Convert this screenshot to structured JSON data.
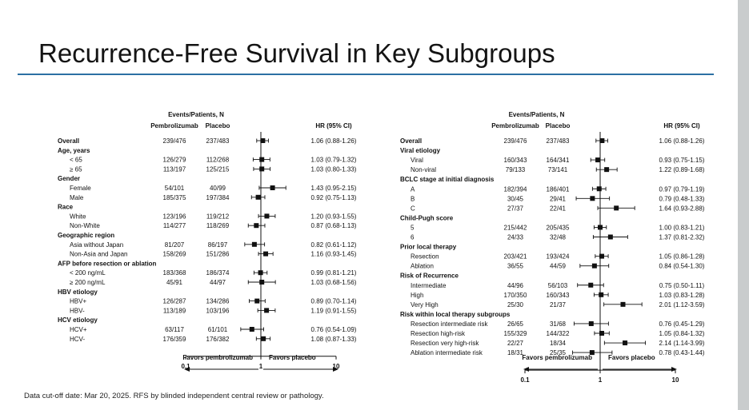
{
  "slide": {
    "title": "Recurrence-Free Survival in Key Subgroups",
    "footnote": "Data cut-off date: Mar 20, 2025. RFS by blinded independent central review or pathology."
  },
  "chart_data": [
    {
      "type": "forest",
      "scale": "log",
      "xlim": [
        0.1,
        10
      ],
      "reference_line": 1,
      "ticks": [
        "0.1",
        "1",
        "10"
      ],
      "header_group": "Events/Patients, N",
      "col_arm1": "Pembrolizumab",
      "col_arm2": "Placebo",
      "col_hr": "HR (95%  CI)",
      "favors_left": "Favors pembrolizumab",
      "favors_right": "Favors placebo",
      "rows": [
        {
          "kind": "data",
          "label": "Overall",
          "bold": true,
          "indent": false,
          "arm1": "239/476",
          "arm2": "237/483",
          "hr_text": "1.06 (0.88-1.26)",
          "hr": 1.06,
          "lo": 0.88,
          "hi": 1.26
        },
        {
          "kind": "header",
          "label": "Age, years"
        },
        {
          "kind": "data",
          "label": "< 65",
          "indent": true,
          "arm1": "126/279",
          "arm2": "112/268",
          "hr_text": "1.03 (0.79-1.32)",
          "hr": 1.03,
          "lo": 0.79,
          "hi": 1.32
        },
        {
          "kind": "data",
          "label": "≥ 65",
          "indent": true,
          "arm1": "113/197",
          "arm2": "125/215",
          "hr_text": "1.03 (0.80-1.33)",
          "hr": 1.03,
          "lo": 0.8,
          "hi": 1.33
        },
        {
          "kind": "header",
          "label": "Gender"
        },
        {
          "kind": "data",
          "label": "Female",
          "indent": true,
          "arm1": "54/101",
          "arm2": "40/99",
          "hr_text": "1.43 (0.95-2.15)",
          "hr": 1.43,
          "lo": 0.95,
          "hi": 2.15
        },
        {
          "kind": "data",
          "label": "Male",
          "indent": true,
          "arm1": "185/375",
          "arm2": "197/384",
          "hr_text": "0.92 (0.75-1.13)",
          "hr": 0.92,
          "lo": 0.75,
          "hi": 1.13
        },
        {
          "kind": "header",
          "label": "Race"
        },
        {
          "kind": "data",
          "label": "White",
          "indent": true,
          "arm1": "123/196",
          "arm2": "119/212",
          "hr_text": "1.20 (0.93-1.55)",
          "hr": 1.2,
          "lo": 0.93,
          "hi": 1.55
        },
        {
          "kind": "data",
          "label": "Non-White",
          "indent": true,
          "arm1": "114/277",
          "arm2": "118/269",
          "hr_text": "0.87 (0.68-1.13)",
          "hr": 0.87,
          "lo": 0.68,
          "hi": 1.13
        },
        {
          "kind": "header",
          "label": "Geographic region"
        },
        {
          "kind": "data",
          "label": "Asia without Japan",
          "indent": true,
          "arm1": "81/207",
          "arm2": "86/197",
          "hr_text": "0.82 (0.61-1.12)",
          "hr": 0.82,
          "lo": 0.61,
          "hi": 1.12
        },
        {
          "kind": "data",
          "label": "Non-Asia and Japan",
          "indent": true,
          "arm1": "158/269",
          "arm2": "151/286",
          "hr_text": "1.16 (0.93-1.45)",
          "hr": 1.16,
          "lo": 0.93,
          "hi": 1.45
        },
        {
          "kind": "header",
          "label": "AFP before resection or ablation"
        },
        {
          "kind": "data",
          "label": "< 200 ng/mL",
          "indent": true,
          "arm1": "183/368",
          "arm2": "186/374",
          "hr_text": "0.99 (0.81-1.21)",
          "hr": 0.99,
          "lo": 0.81,
          "hi": 1.21
        },
        {
          "kind": "data",
          "label": "≥ 200 ng/mL",
          "indent": true,
          "arm1": "45/91",
          "arm2": "44/97",
          "hr_text": "1.03 (0.68-1.56)",
          "hr": 1.03,
          "lo": 0.68,
          "hi": 1.56
        },
        {
          "kind": "header",
          "label": "HBV  etiology"
        },
        {
          "kind": "data",
          "label": "HBV+",
          "indent": true,
          "arm1": "126/287",
          "arm2": "134/286",
          "hr_text": "0.89 (0.70-1.14)",
          "hr": 0.89,
          "lo": 0.7,
          "hi": 1.14
        },
        {
          "kind": "data",
          "label": "HBV-",
          "indent": true,
          "arm1": "113/189",
          "arm2": "103/196",
          "hr_text": "1.19 (0.91-1.55)",
          "hr": 1.19,
          "lo": 0.91,
          "hi": 1.55
        },
        {
          "kind": "header",
          "label": "HCV  etiology"
        },
        {
          "kind": "data",
          "label": "HCV+",
          "indent": true,
          "arm1": "63/117",
          "arm2": "61/101",
          "hr_text": "0.76 (0.54-1.09)",
          "hr": 0.76,
          "lo": 0.54,
          "hi": 1.09
        },
        {
          "kind": "data",
          "label": "HCV-",
          "indent": true,
          "arm1": "176/359",
          "arm2": "176/382",
          "hr_text": "1.08 (0.87-1.33)",
          "hr": 1.08,
          "lo": 0.87,
          "hi": 1.33
        }
      ]
    },
    {
      "type": "forest",
      "scale": "log",
      "xlim": [
        0.1,
        10
      ],
      "reference_line": 1,
      "ticks": [
        "0.1",
        "1",
        "10"
      ],
      "header_group": "Events/Patients, N",
      "col_arm1": "Pembrolizumab",
      "col_arm2": "Placebo",
      "col_hr": "HR (95%  CI)",
      "favors_left": "Favors pembrolizumab",
      "favors_right": "Favors placebo",
      "rows": [
        {
          "kind": "data",
          "label": "Overall",
          "bold": true,
          "indent": false,
          "arm1": "239/476",
          "arm2": "237/483",
          "hr_text": "1.06 (0.88-1.26)",
          "hr": 1.06,
          "lo": 0.88,
          "hi": 1.26
        },
        {
          "kind": "header",
          "label": "Viral etiology"
        },
        {
          "kind": "data",
          "label": "Viral",
          "indent": true,
          "arm1": "160/343",
          "arm2": "164/341",
          "hr_text": "0.93 (0.75-1.15)",
          "hr": 0.93,
          "lo": 0.75,
          "hi": 1.15
        },
        {
          "kind": "data",
          "label": "Non-viral",
          "indent": true,
          "arm1": "79/133",
          "arm2": "73/141",
          "hr_text": "1.22 (0.89-1.68)",
          "hr": 1.22,
          "lo": 0.89,
          "hi": 1.68
        },
        {
          "kind": "header",
          "label": "BCLC stage at initial diagnosis"
        },
        {
          "kind": "data",
          "label": "A",
          "indent": true,
          "arm1": "182/394",
          "arm2": "186/401",
          "hr_text": "0.97 (0.79-1.19)",
          "hr": 0.97,
          "lo": 0.79,
          "hi": 1.19
        },
        {
          "kind": "data",
          "label": "B",
          "indent": true,
          "arm1": "30/45",
          "arm2": "29/41",
          "hr_text": "0.79 (0.48-1.33)",
          "hr": 0.79,
          "lo": 0.48,
          "hi": 1.33
        },
        {
          "kind": "data",
          "label": "C",
          "indent": true,
          "arm1": "27/37",
          "arm2": "22/41",
          "hr_text": "1.64 (0.93-2.88)",
          "hr": 1.64,
          "lo": 0.93,
          "hi": 2.88
        },
        {
          "kind": "header",
          "label": "Child-Pugh score"
        },
        {
          "kind": "data",
          "label": "5",
          "indent": true,
          "arm1": "215/442",
          "arm2": "205/435",
          "hr_text": "1.00  (0.83-1.21)",
          "hr": 1.0,
          "lo": 0.83,
          "hi": 1.21
        },
        {
          "kind": "data",
          "label": "6",
          "indent": true,
          "arm1": "24/33",
          "arm2": "32/48",
          "hr_text": "1.37 (0.81-2.32)",
          "hr": 1.37,
          "lo": 0.81,
          "hi": 2.32
        },
        {
          "kind": "header",
          "label": "Prior local therapy"
        },
        {
          "kind": "data",
          "label": "Resection",
          "indent": true,
          "arm1": "203/421",
          "arm2": "193/424",
          "hr_text": "1.05 (0.86-1.28)",
          "hr": 1.05,
          "lo": 0.86,
          "hi": 1.28
        },
        {
          "kind": "data",
          "label": "Ablation",
          "indent": true,
          "arm1": "36/55",
          "arm2": "44/59",
          "hr_text": "0.84 (0.54-1.30)",
          "hr": 0.84,
          "lo": 0.54,
          "hi": 1.3
        },
        {
          "kind": "header",
          "label": "Risk of Recurrence"
        },
        {
          "kind": "data",
          "label": "Intermediate",
          "indent": true,
          "arm1": "44/96",
          "arm2": "56/103",
          "hr_text": "0.75 (0.50-1.11)",
          "hr": 0.75,
          "lo": 0.5,
          "hi": 1.11
        },
        {
          "kind": "data",
          "label": "High",
          "indent": true,
          "arm1": "170/350",
          "arm2": "160/343",
          "hr_text": "1.03 (0.83-1.28)",
          "hr": 1.03,
          "lo": 0.83,
          "hi": 1.28
        },
        {
          "kind": "data",
          "label": "Very  High",
          "indent": true,
          "arm1": "25/30",
          "arm2": "21/37",
          "hr_text": "2.01 (1.12-3.59)",
          "hr": 2.01,
          "lo": 1.12,
          "hi": 3.59
        },
        {
          "kind": "header",
          "label": "Risk within local therapy subgroups"
        },
        {
          "kind": "data",
          "label": "Resection intermediate risk",
          "indent": true,
          "arm1": "26/65",
          "arm2": "31/68",
          "hr_text": "0.76 (0.45-1.29)",
          "hr": 0.76,
          "lo": 0.45,
          "hi": 1.29
        },
        {
          "kind": "data",
          "label": "Resection high-risk",
          "indent": true,
          "arm1": "155/329",
          "arm2": "144/322",
          "hr_text": "1.05 (0.84-1.32)",
          "hr": 1.05,
          "lo": 0.84,
          "hi": 1.32
        },
        {
          "kind": "data",
          "label": "Resection very high-risk",
          "indent": true,
          "arm1": "22/27",
          "arm2": "18/34",
          "hr_text": "2.14 (1.14-3.99)",
          "hr": 2.14,
          "lo": 1.14,
          "hi": 3.99
        },
        {
          "kind": "data",
          "label": "Ablation intermediate risk",
          "indent": true,
          "arm1": "18/31",
          "arm2": "25/35",
          "hr_text": "0.78 (0.43-1.44)",
          "hr": 0.78,
          "lo": 0.43,
          "hi": 1.44
        }
      ]
    }
  ]
}
